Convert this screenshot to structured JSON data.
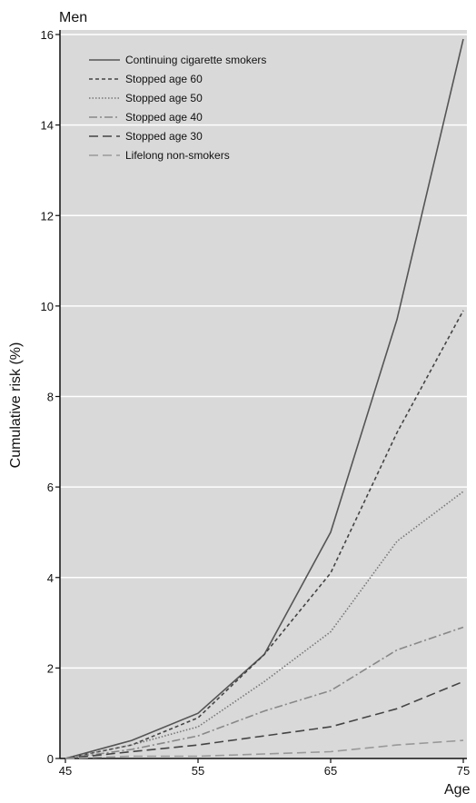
{
  "chart_data": {
    "type": "line",
    "title": "Men",
    "xlabel": "Age",
    "ylabel": "Cumulative risk (%)",
    "xlim": [
      45,
      75
    ],
    "ylim": [
      0,
      16
    ],
    "x_ticks": [
      45,
      55,
      65,
      75
    ],
    "y_ticks": [
      0,
      2,
      4,
      6,
      8,
      10,
      12,
      14,
      16
    ],
    "grid": "horizontal",
    "legend_position": "top-left",
    "background": "#d9d9d9",
    "x": [
      45,
      50,
      55,
      60,
      65,
      70,
      75
    ],
    "series": [
      {
        "name": "Continuing cigarette smokers",
        "values": [
          0,
          0.4,
          1.0,
          2.3,
          5.0,
          9.7,
          15.9
        ],
        "color": "#555555",
        "dash": "solid"
      },
      {
        "name": "Stopped age 60",
        "values": [
          0,
          0.3,
          0.9,
          2.3,
          4.1,
          7.2,
          9.9
        ],
        "color": "#444444",
        "dash": "short-dash"
      },
      {
        "name": "Stopped age 50",
        "values": [
          0,
          0.3,
          0.7,
          1.7,
          2.8,
          4.8,
          5.9
        ],
        "color": "#777777",
        "dash": "dotted"
      },
      {
        "name": "Stopped age 40",
        "values": [
          0,
          0.2,
          0.5,
          1.05,
          1.5,
          2.4,
          2.9
        ],
        "color": "#888888",
        "dash": "dash-dot"
      },
      {
        "name": "Stopped age 30",
        "values": [
          0,
          0.15,
          0.3,
          0.5,
          0.7,
          1.1,
          1.7
        ],
        "color": "#444444",
        "dash": "long-dash"
      },
      {
        "name": "Lifelong non-smokers",
        "values": [
          0,
          0.05,
          0.05,
          0.1,
          0.15,
          0.3,
          0.4
        ],
        "color": "#999999",
        "dash": "long-dash"
      }
    ]
  }
}
